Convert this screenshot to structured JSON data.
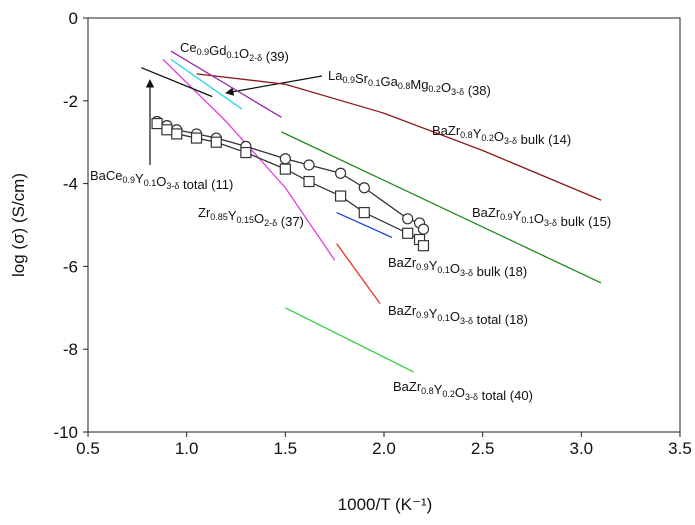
{
  "chart_data": {
    "type": "line",
    "xlabel": "1000/T (K⁻¹)",
    "ylabel": "log (σ) (S/cm)",
    "xlim": [
      0.5,
      3.5
    ],
    "ylim": [
      -10,
      0
    ],
    "xticks": [
      0.5,
      {
        "value": 1,
        "label": "1.0"
      },
      1.5,
      {
        "value": 2,
        "label": "2.0"
      },
      2.5,
      {
        "value": 3,
        "label": "3.0"
      },
      3.5
    ],
    "yticks": [
      0,
      -2,
      -4,
      -6,
      -8,
      -10
    ],
    "series": [
      {
        "color": "#8b1a1a",
        "x": [
          1.05,
          1.5,
          2.0,
          2.5,
          3.1
        ],
        "values": [
          -1.35,
          -1.6,
          -2.3,
          -3.2,
          -4.4
        ]
      },
      {
        "color": "#1a8a1a",
        "x": [
          1.48,
          3.1
        ],
        "values": [
          -2.75,
          -6.4
        ]
      },
      {
        "color": "#1f3fe0",
        "x": [
          1.76,
          2.04
        ],
        "values": [
          -4.7,
          -5.3
        ]
      },
      {
        "color": "#e8321e",
        "x": [
          1.76,
          1.98
        ],
        "values": [
          -5.45,
          -6.9
        ]
      },
      {
        "color": "#3ad13a",
        "x": [
          1.5,
          2.15
        ],
        "values": [
          -7.0,
          -8.55
        ]
      },
      {
        "color": "#e040e0",
        "x": [
          0.88,
          1.2,
          1.5,
          1.75
        ],
        "values": [
          -1.0,
          -2.5,
          -4.1,
          -5.85
        ]
      },
      {
        "color": "#9a2aa8",
        "x": [
          0.92,
          1.48
        ],
        "values": [
          -0.8,
          -2.4
        ]
      },
      {
        "color": "#22d8e8",
        "x": [
          0.92,
          1.28
        ],
        "values": [
          -1.0,
          -2.2
        ]
      },
      {
        "color": "#111111",
        "x": [
          0.77,
          1.13
        ],
        "values": [
          -1.2,
          -1.9
        ]
      },
      {
        "color": "#333333",
        "marker": "circle",
        "x": [
          0.85,
          0.9,
          0.95,
          1.05,
          1.15,
          1.3,
          1.5,
          1.62,
          1.78,
          1.9,
          2.12,
          2.18,
          2.2
        ],
        "values": [
          -2.5,
          -2.6,
          -2.7,
          -2.8,
          -2.9,
          -3.1,
          -3.4,
          -3.55,
          -3.75,
          -4.1,
          -4.85,
          -4.95,
          -5.1
        ]
      },
      {
        "color": "#333333",
        "marker": "square",
        "x": [
          0.85,
          0.9,
          0.95,
          1.05,
          1.15,
          1.3,
          1.5,
          1.62,
          1.78,
          1.9,
          2.12,
          2.18,
          2.2
        ],
        "values": [
          -2.55,
          -2.7,
          -2.8,
          -2.9,
          -3.0,
          -3.25,
          -3.65,
          -3.95,
          -4.3,
          -4.7,
          -5.2,
          -5.35,
          -5.5
        ]
      }
    ],
    "annotations": [
      "Ce0.9Gd0.1O2-δ (39)",
      "La0.9Sr0.1Ga0.8Mg0.2O3-δ (38)",
      "BaZr0.8Y0.2O3-δ bulk (14)",
      "BaCe0.9Y0.1O3-δ total (11)",
      "Zr0.85Y0.15O2-δ (37)",
      "BaZr0.9Y0.1O3-δ bulk (15)",
      "BaZr0.9Y0.1O3-δ bulk (18)",
      "BaZr0.9Y0.1O3-δ total (18)",
      "BaZr0.8Y0.2O3-δ total (40)"
    ]
  }
}
